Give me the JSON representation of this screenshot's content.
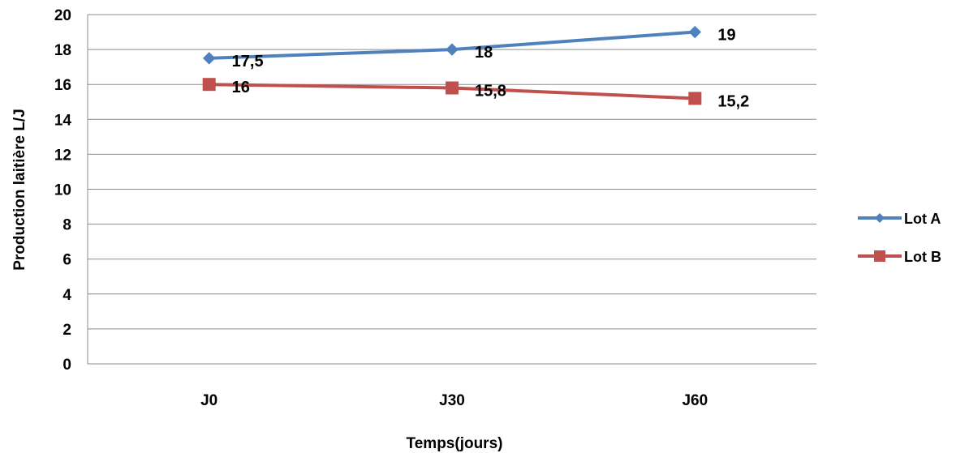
{
  "chart_data": {
    "type": "line",
    "title": "",
    "xlabel": "Temps(jours)",
    "ylabel": "Production laitière L/J",
    "categories": [
      "J0",
      "J30",
      "J60"
    ],
    "ylim": [
      0,
      20
    ],
    "ytick_step": 2,
    "grid": true,
    "legend_position": "right",
    "series": [
      {
        "name": "Lot A",
        "values": [
          17.5,
          18,
          19
        ],
        "labels": [
          "17,5",
          "18",
          "19"
        ],
        "color": "#4F81BD",
        "marker": "diamond"
      },
      {
        "name": "Lot B",
        "values": [
          16,
          15.8,
          15.2
        ],
        "labels": [
          "16",
          "15,8",
          "15,2"
        ],
        "color": "#C0504D",
        "marker": "square"
      }
    ]
  }
}
